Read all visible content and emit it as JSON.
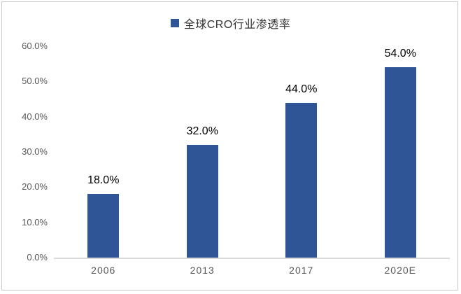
{
  "figure": {
    "background": "#ffffff",
    "border_color": "#c9c9c9"
  },
  "legend": {
    "label": "全球CRO行业渗透率",
    "marker_color": "#2f5597",
    "position": "top-center"
  },
  "chart_data": {
    "type": "bar",
    "title": "",
    "series_name": "全球CRO行业渗透率",
    "categories": [
      "2006",
      "2013",
      "2017",
      "2020E"
    ],
    "values": [
      18.0,
      32.0,
      44.0,
      54.0
    ],
    "value_labels": [
      "18.0%",
      "32.0%",
      "44.0%",
      "54.0%"
    ],
    "xlabel": "",
    "ylabel": "",
    "ylim": [
      0,
      60
    ],
    "y_tick_labels": [
      "0.0%",
      "10.0%",
      "20.0%",
      "30.0%",
      "40.0%",
      "50.0%",
      "60.0%"
    ],
    "grid": false,
    "legend_position": "top-center",
    "bar_color": "#2f5597",
    "axis_line_color": "#d9d9d9",
    "tick_label_color": "#595959",
    "data_label_color": "#000000"
  }
}
